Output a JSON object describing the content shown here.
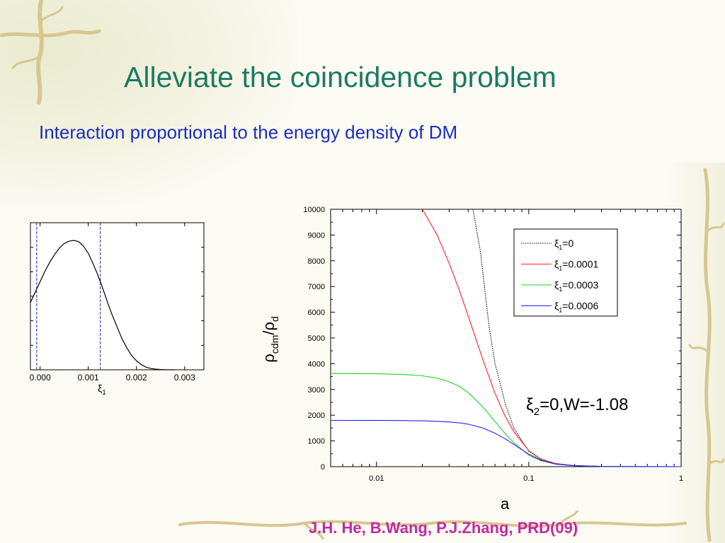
{
  "slide": {
    "title": "Alleviate the coincidence problem",
    "subtitle": "Interaction proportional to the energy density of DM",
    "citation": "J.H. He, B.Wang, P.J.Zhang, PRD(09)"
  },
  "colors": {
    "title": "#1c7a64",
    "subtitle": "#1a2fbd",
    "citation": "#c22aa0",
    "vine": "#d7c78f",
    "series_0": "#000000",
    "series_0.0001": "#ff2020",
    "series_0.0003": "#20d020",
    "series_0.0006": "#2020ff"
  },
  "chart_data": [
    {
      "type": "line",
      "title": "",
      "xlabel_symbol": "ξ",
      "xlabel_sub": "1",
      "ylabel": "",
      "xlim": [
        -0.0002,
        0.0034
      ],
      "ylim": [
        0,
        1
      ],
      "x_ticks": [
        0.0,
        0.001,
        0.002,
        0.003
      ],
      "x_tick_labels": [
        "0.000",
        "0.001",
        "0.002",
        "0.003"
      ],
      "y_tick_labels": [],
      "grid": false,
      "series": [
        {
          "style": "solid",
          "x": [
            -0.0002,
            -0.0001,
            0.0,
            0.0001,
            0.0002,
            0.0003,
            0.0004,
            0.0005,
            0.0006,
            0.0007,
            0.0008,
            0.0009,
            0.001,
            0.0011,
            0.0012,
            0.0013,
            0.0014,
            0.0015,
            0.0016,
            0.0017,
            0.0018,
            0.0019,
            0.002,
            0.0021,
            0.0022,
            0.0023,
            0.0024,
            0.0025,
            0.0026,
            0.0027,
            0.0028
          ],
          "y": [
            0.52,
            0.6,
            0.68,
            0.76,
            0.83,
            0.89,
            0.94,
            0.975,
            0.993,
            1.0,
            0.99,
            0.955,
            0.9,
            0.82,
            0.73,
            0.63,
            0.52,
            0.42,
            0.33,
            0.24,
            0.17,
            0.11,
            0.07,
            0.04,
            0.02,
            0.01,
            0.005,
            0.002,
            0.001,
            0.0,
            0.0
          ]
        }
      ],
      "vlines": [
        -7e-05,
        0.00125
      ]
    },
    {
      "type": "line",
      "title": "",
      "xlabel": "a",
      "ylabel_parts": [
        "ρ",
        "cdm",
        "/ρ",
        "d"
      ],
      "x_scale": "log",
      "xlim": [
        0.005,
        1
      ],
      "ylim": [
        0,
        10000
      ],
      "x_ticks": [
        0.01,
        0.1,
        1
      ],
      "x_tick_labels": [
        "0.01",
        "0.1",
        "1"
      ],
      "y_ticks": [
        0,
        1000,
        2000,
        3000,
        4000,
        5000,
        6000,
        7000,
        8000,
        9000,
        10000
      ],
      "y_tick_labels": [
        "0",
        "1000",
        "2000",
        "3000",
        "4000",
        "5000",
        "6000",
        "7000",
        "8000",
        "9000",
        "10000"
      ],
      "grid": false,
      "legend_position": "upper-right",
      "annotation": {
        "symbol": "ξ",
        "sub": "2",
        "text": "=0,W=-1.08"
      },
      "series": [
        {
          "name": "=0",
          "legend_symbol": "ξ",
          "legend_sub": "1",
          "color_key": "series_0",
          "style": "dotted",
          "x": [
            0.043,
            0.048,
            0.055,
            0.06,
            0.07,
            0.08,
            0.1,
            0.12,
            0.15,
            0.2,
            0.3,
            0.5,
            1.0
          ],
          "y": [
            10000,
            8400,
            5400,
            4000,
            2450,
            1480,
            600,
            280,
            110,
            40,
            10,
            2,
            0
          ]
        },
        {
          "name": "=0.0001",
          "legend_symbol": "ξ",
          "legend_sub": "1",
          "color_key": "series_0.0001",
          "style": "solid",
          "x": [
            0.02,
            0.025,
            0.03,
            0.035,
            0.04,
            0.045,
            0.05,
            0.06,
            0.07,
            0.08,
            0.1,
            0.12,
            0.15,
            0.2,
            0.3,
            0.5,
            1.0
          ],
          "y": [
            10000,
            9000,
            7900,
            6850,
            5850,
            4950,
            4150,
            2850,
            1950,
            1350,
            620,
            300,
            120,
            40,
            10,
            2,
            0
          ]
        },
        {
          "name": "=0.0003",
          "legend_symbol": "ξ",
          "legend_sub": "1",
          "color_key": "series_0.0003",
          "style": "solid",
          "x": [
            0.005,
            0.01,
            0.015,
            0.02,
            0.025,
            0.03,
            0.035,
            0.04,
            0.05,
            0.06,
            0.07,
            0.08,
            0.1,
            0.12,
            0.15,
            0.2,
            0.3,
            0.5,
            1.0
          ],
          "y": [
            3620,
            3610,
            3580,
            3530,
            3440,
            3300,
            3120,
            2880,
            2320,
            1750,
            1280,
            920,
            450,
            230,
            95,
            35,
            8,
            2,
            0
          ]
        },
        {
          "name": "=0.0006",
          "legend_symbol": "ξ",
          "legend_sub": "1",
          "color_key": "series_0.0006",
          "style": "solid",
          "x": [
            0.005,
            0.01,
            0.015,
            0.02,
            0.025,
            0.03,
            0.035,
            0.04,
            0.05,
            0.06,
            0.07,
            0.08,
            0.1,
            0.12,
            0.15,
            0.2,
            0.3,
            0.5,
            1.0
          ],
          "y": [
            1800,
            1798,
            1790,
            1780,
            1760,
            1735,
            1700,
            1650,
            1500,
            1300,
            1080,
            860,
            480,
            250,
            100,
            35,
            8,
            2,
            0
          ]
        }
      ]
    }
  ]
}
